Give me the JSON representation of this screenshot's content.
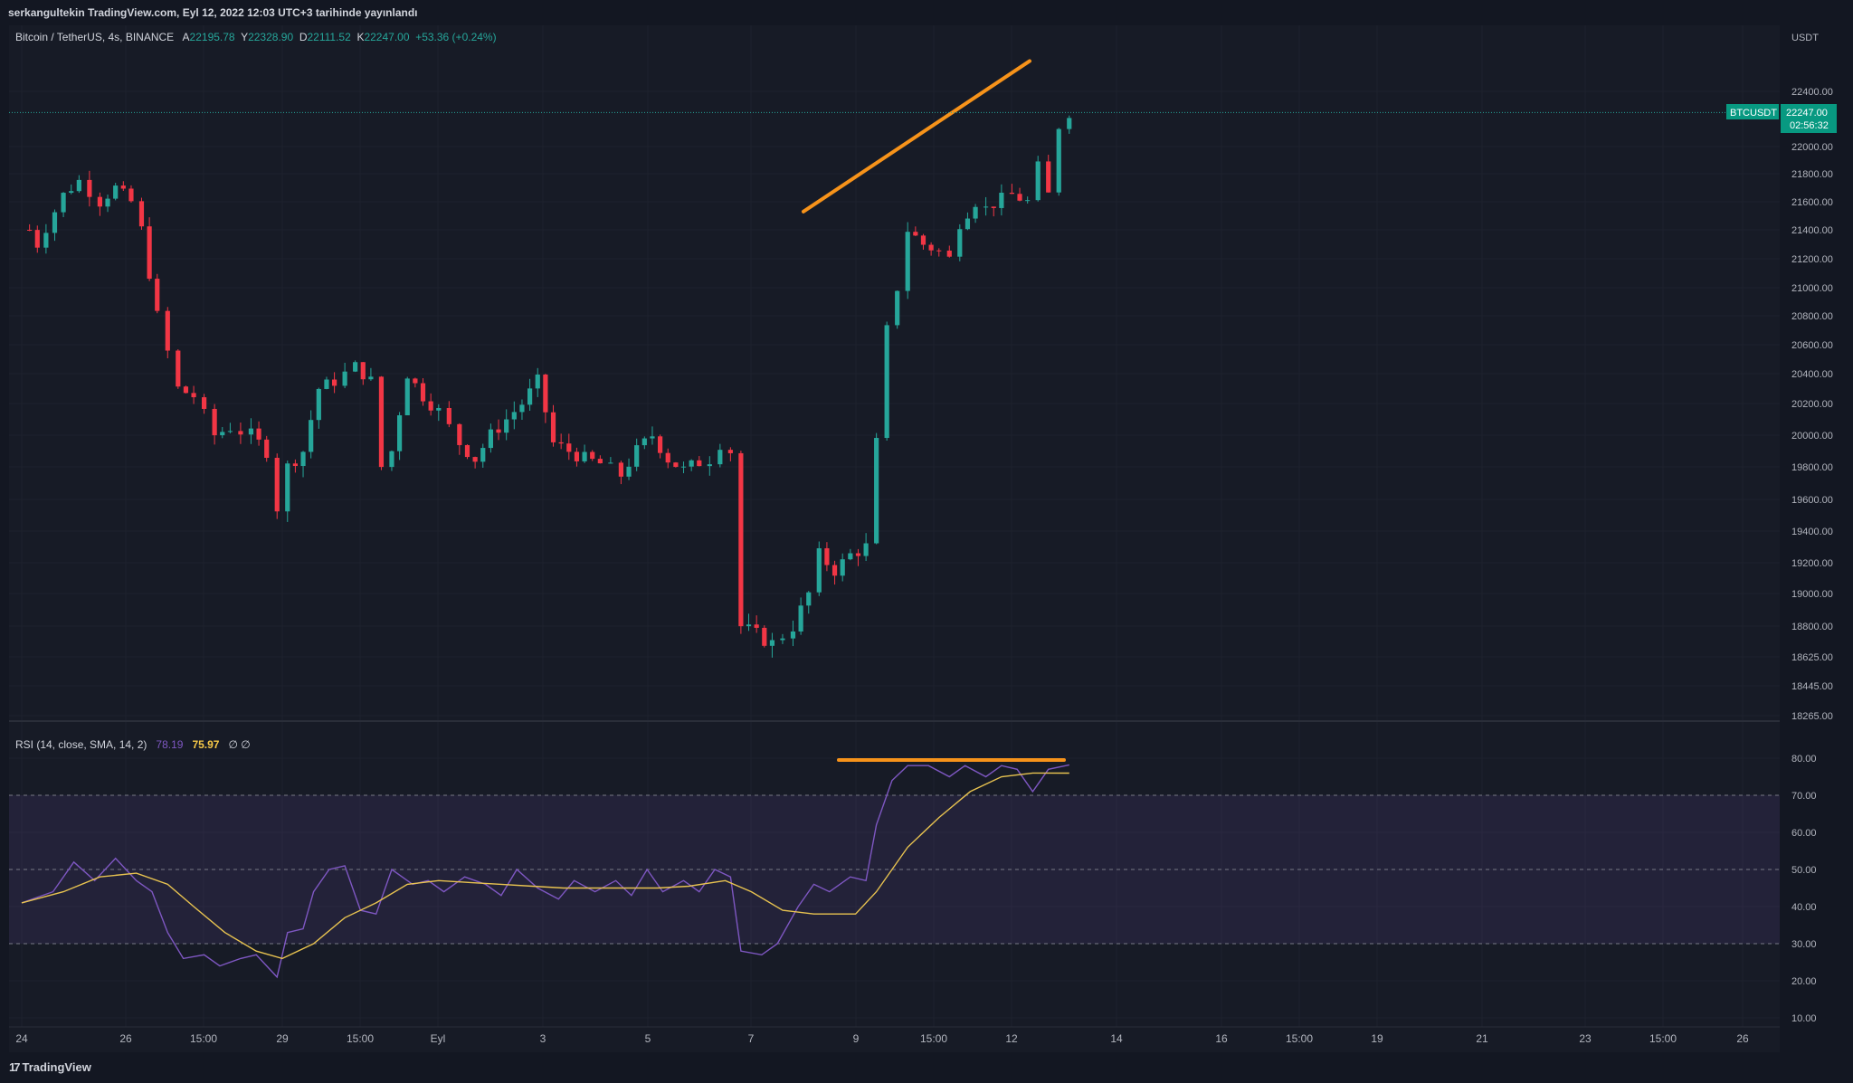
{
  "header": {
    "publisher": "serkangultekin TradingView.com, Eyl 12, 2022 12:03 UTC+3 tarihinde yayınlandı"
  },
  "legend": {
    "symbol": "Bitcoin / TetherUS, 4s, BINANCE",
    "open_label": "A",
    "open": "22195.78",
    "high_label": "Y",
    "high": "22328.90",
    "low_label": "D",
    "low": "22111.52",
    "close_label": "K",
    "close": "22247.00",
    "change": "+53.36 (+0.24%)"
  },
  "rsi_legend": {
    "label": "RSI (14, close, SMA, 14, 2)",
    "rsi": "78.19",
    "sma": "75.97",
    "extra": "∅ ∅"
  },
  "price_axis": {
    "currency": "USDT"
  },
  "price_tag": {
    "symbol": "BTCUSDT",
    "price": "22247.00",
    "countdown": "02:56:32"
  },
  "footer": {
    "brand": "TradingView"
  },
  "colors": {
    "up": "#26a69a",
    "down": "#f23645",
    "rsi": "#7e57c2",
    "rsi_ma": "#e8c350",
    "trendline": "#f7931a",
    "band": "#7e57c2"
  },
  "chart_data": [
    {
      "type": "candlestick",
      "series_name": "Bitcoin / TetherUS",
      "interval": "4s",
      "y_ticks": [
        "22400.00",
        "22200.00",
        "22000.00",
        "21800.00",
        "21600.00",
        "21400.00",
        "21200.00",
        "21000.00",
        "20800.00",
        "20600.00",
        "20400.00",
        "20200.00",
        "20000.00",
        "19800.00",
        "19600.00",
        "19400.00",
        "19200.00",
        "19000.00",
        "18800.00",
        "18625.00",
        "18445.00",
        "18265.00"
      ],
      "x_ticks": [
        "24",
        "26",
        "15:00",
        "29",
        "15:00",
        "Eyl",
        "3",
        "5",
        "7",
        "9",
        "15:00",
        "12",
        "14",
        "16",
        "15:00",
        "19",
        "21",
        "23",
        "15:00",
        "26"
      ],
      "last_price": 22247.0,
      "trendline": {
        "from": {
          "date": "Sep 8",
          "price": 21530
        },
        "to": {
          "date": "Sep 12",
          "price": 22620
        }
      }
    },
    {
      "type": "line",
      "title": "RSI (14, close, SMA, 14, 2)",
      "ylim": [
        0,
        90
      ],
      "y_ticks": [
        "80.00",
        "70.00",
        "60.00",
        "50.00",
        "40.00",
        "30.00",
        "20.00",
        "10.00"
      ],
      "bands": {
        "upper": 70,
        "middle": 50,
        "lower": 30
      },
      "series": [
        {
          "name": "RSI",
          "last": 78.19
        },
        {
          "name": "RSI-based MA",
          "last": 75.97
        }
      ],
      "trendline": {
        "from": {
          "date": "Sep 8",
          "value": 79.5
        },
        "to": {
          "date": "Sep 13",
          "value": 79.5
        }
      }
    }
  ]
}
